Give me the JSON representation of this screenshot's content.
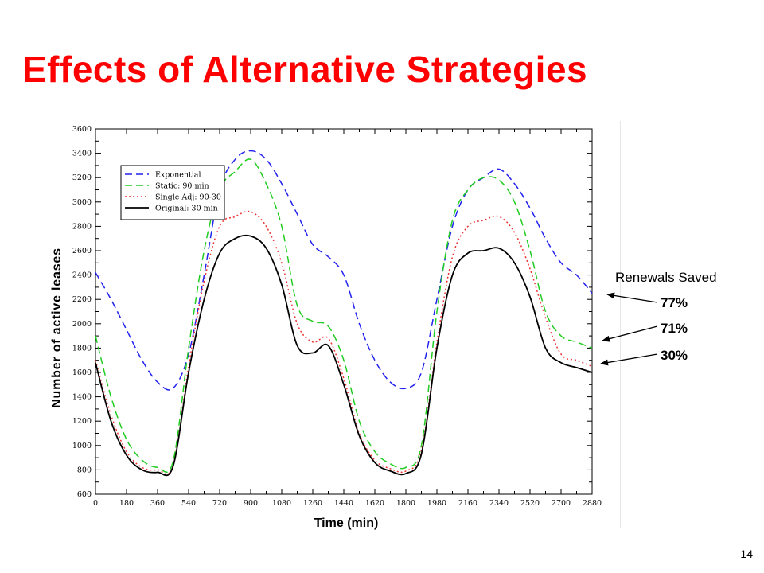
{
  "slide": {
    "title": "Effects of Alternative Strategies",
    "page_number": "14"
  },
  "annotations": {
    "title": "Renewals Saved",
    "items": [
      {
        "label": "77%",
        "series": "Exponential"
      },
      {
        "label": "71%",
        "series": "Static: 90 min"
      },
      {
        "label": "30%",
        "series": "Single Adj: 90-30"
      }
    ]
  },
  "chart_data": {
    "type": "line",
    "xlabel": "Time (min)",
    "ylabel": "Number of active leases",
    "xlim": [
      0,
      2880
    ],
    "ylim": [
      600,
      3600
    ],
    "xticks": [
      "0",
      "180",
      "360",
      "540",
      "720",
      "900",
      "1080",
      "1260",
      "1440",
      "1620",
      "1800",
      "1980",
      "2160",
      "2340",
      "2520",
      "2700",
      "2880"
    ],
    "yticks": [
      "600",
      "800",
      "1000",
      "1200",
      "1400",
      "1600",
      "1800",
      "2000",
      "2200",
      "2400",
      "2600",
      "2800",
      "3000",
      "3200",
      "3400",
      "3600"
    ],
    "legend_position": "top-left",
    "grid": false,
    "x": [
      0,
      90,
      180,
      270,
      360,
      450,
      540,
      630,
      720,
      810,
      900,
      990,
      1080,
      1170,
      1260,
      1350,
      1440,
      1530,
      1620,
      1710,
      1800,
      1890,
      1980,
      2070,
      2160,
      2250,
      2340,
      2430,
      2520,
      2610,
      2700,
      2790,
      2880
    ],
    "series": [
      {
        "name": "Exponential",
        "color": "#2222ee",
        "dash": "dashed",
        "values": [
          2420,
          2200,
          1950,
          1700,
          1520,
          1470,
          1750,
          2400,
          3100,
          3350,
          3420,
          3350,
          3150,
          2900,
          2650,
          2550,
          2400,
          2000,
          1700,
          1520,
          1470,
          1600,
          2200,
          2800,
          3100,
          3200,
          3270,
          3150,
          2950,
          2700,
          2500,
          2400,
          2250
        ]
      },
      {
        "name": "Static: 90 min",
        "color": "#22cc22",
        "dash": "dashed",
        "values": [
          1900,
          1400,
          1050,
          880,
          820,
          870,
          1800,
          2600,
          3100,
          3250,
          3350,
          3150,
          2800,
          2150,
          2020,
          1980,
          1700,
          1200,
          950,
          850,
          820,
          1000,
          2100,
          2850,
          3100,
          3200,
          3180,
          3000,
          2600,
          2100,
          1900,
          1850,
          1800
        ]
      },
      {
        "name": "Single Adj: 90-30",
        "color": "#ee3333",
        "dash": "dotted",
        "values": [
          1700,
          1250,
          950,
          820,
          800,
          840,
          1650,
          2350,
          2800,
          2880,
          2920,
          2800,
          2500,
          2000,
          1850,
          1880,
          1550,
          1100,
          880,
          810,
          790,
          960,
          1850,
          2550,
          2800,
          2850,
          2880,
          2750,
          2450,
          2050,
          1750,
          1700,
          1650
        ]
      },
      {
        "name": "Original: 30 min",
        "color": "#000000",
        "dash": "solid",
        "values": [
          1680,
          1200,
          920,
          800,
          780,
          830,
          1600,
          2200,
          2580,
          2700,
          2720,
          2620,
          2320,
          1820,
          1760,
          1820,
          1500,
          1080,
          860,
          790,
          770,
          930,
          1800,
          2400,
          2580,
          2600,
          2620,
          2500,
          2220,
          1800,
          1680,
          1640,
          1600
        ]
      }
    ]
  }
}
